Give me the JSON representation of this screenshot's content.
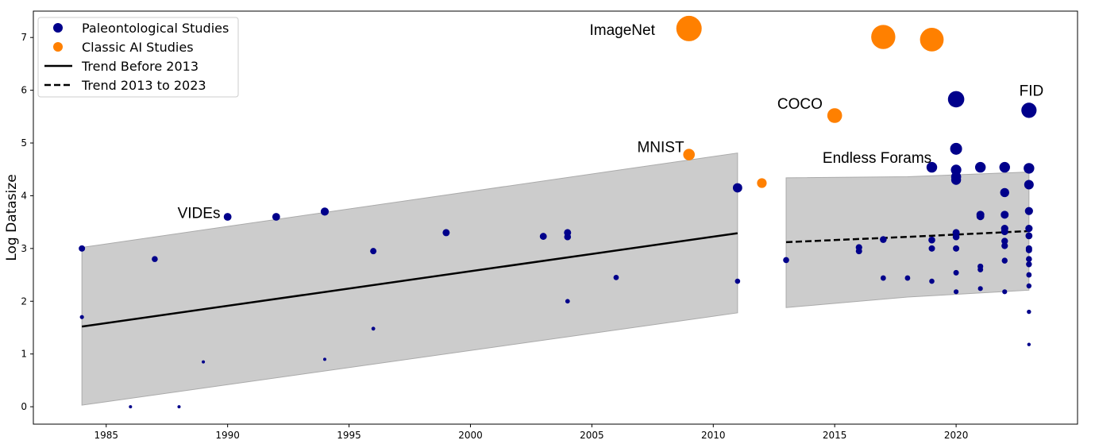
{
  "chart_data": {
    "type": "scatter",
    "title": "",
    "xlabel": "",
    "ylabel": "Log Datasize",
    "xlim": [
      1982.0,
      2025.0
    ],
    "ylim": [
      -0.33,
      7.5
    ],
    "xticks": [
      1985,
      1990,
      1995,
      2000,
      2005,
      2010,
      2015,
      2020
    ],
    "yticks": [
      0,
      1,
      2,
      3,
      4,
      5,
      6,
      7
    ],
    "grid": false,
    "legend_position": "top-left",
    "legend": [
      "Paleontological Studies",
      "Classic AI Studies",
      "Trend Before 2013",
      "Trend 2013 to 2023"
    ],
    "colors": {
      "paleo": "#00008b",
      "ai": "#ff8000",
      "band": "#cccccc"
    },
    "series": [
      {
        "name": "Paleontological Studies",
        "points": [
          [
            1984,
            3.0
          ],
          [
            1984,
            1.7
          ],
          [
            1986,
            0.0
          ],
          [
            1987,
            2.8
          ],
          [
            1988,
            0.0
          ],
          [
            1989,
            0.85
          ],
          [
            1990,
            3.6
          ],
          [
            1992,
            3.6
          ],
          [
            1994,
            3.7
          ],
          [
            1994,
            0.9
          ],
          [
            1996,
            2.95
          ],
          [
            1996,
            1.48
          ],
          [
            1999,
            3.3
          ],
          [
            2003,
            3.23
          ],
          [
            2004,
            3.3
          ],
          [
            2004,
            3.22
          ],
          [
            2004,
            2.0
          ],
          [
            2006,
            2.45
          ],
          [
            2011,
            4.15
          ],
          [
            2011,
            2.38
          ],
          [
            2013,
            2.78
          ],
          [
            2016,
            3.02
          ],
          [
            2016,
            2.95
          ],
          [
            2017,
            3.17
          ],
          [
            2017,
            2.44
          ],
          [
            2018,
            2.44
          ],
          [
            2019,
            4.54
          ],
          [
            2019,
            3.16
          ],
          [
            2019,
            3.0
          ],
          [
            2019,
            2.38
          ],
          [
            2020,
            5.83
          ],
          [
            2020,
            4.89
          ],
          [
            2020,
            4.49
          ],
          [
            2020,
            4.36
          ],
          [
            2020,
            4.3
          ],
          [
            2020,
            3.3
          ],
          [
            2020,
            3.22
          ],
          [
            2020,
            3.0
          ],
          [
            2020,
            2.54
          ],
          [
            2020,
            2.18
          ],
          [
            2021,
            4.54
          ],
          [
            2021,
            3.64
          ],
          [
            2021,
            3.61
          ],
          [
            2021,
            2.66
          ],
          [
            2021,
            2.6
          ],
          [
            2021,
            2.24
          ],
          [
            2022,
            4.54
          ],
          [
            2022,
            4.06
          ],
          [
            2022,
            3.64
          ],
          [
            2022,
            3.38
          ],
          [
            2022,
            3.32
          ],
          [
            2022,
            3.14
          ],
          [
            2022,
            3.05
          ],
          [
            2022,
            2.77
          ],
          [
            2022,
            2.18
          ],
          [
            2023,
            5.62
          ],
          [
            2023,
            4.52
          ],
          [
            2023,
            4.21
          ],
          [
            2023,
            3.71
          ],
          [
            2023,
            3.38
          ],
          [
            2023,
            3.24
          ],
          [
            2023,
            3.0
          ],
          [
            2023,
            2.97
          ],
          [
            2023,
            2.8
          ],
          [
            2023,
            2.7
          ],
          [
            2023,
            2.5
          ],
          [
            2023,
            2.29
          ],
          [
            2023,
            1.8
          ],
          [
            2023,
            1.18
          ]
        ]
      },
      {
        "name": "Classic AI Studies",
        "points": [
          [
            2009,
            7.17
          ],
          [
            2017,
            7.01
          ],
          [
            2019,
            6.96
          ],
          [
            2015,
            5.52
          ],
          [
            2009,
            4.78
          ],
          [
            2012,
            4.24
          ]
        ]
      }
    ],
    "trends": [
      {
        "name": "Trend Before 2013",
        "style": "solid",
        "x": [
          1984,
          2011
        ],
        "y": [
          1.52,
          3.29
        ],
        "band_upper": [
          3.02,
          4.81
        ],
        "band_lower": [
          0.03,
          1.78
        ]
      },
      {
        "name": "Trend 2013 to 2023",
        "style": "dashed",
        "x": [
          2013,
          2018,
          2023
        ],
        "y": [
          3.12,
          3.22,
          3.33
        ],
        "band_upper": [
          4.34,
          4.36,
          4.45
        ],
        "band_lower": [
          1.88,
          2.08,
          2.21
        ]
      }
    ],
    "annotations": [
      {
        "text": "ImageNet",
        "x": 2007.6,
        "y": 7.15,
        "anchor": "end"
      },
      {
        "text": "COCO",
        "x": 2014.5,
        "y": 5.75,
        "anchor": "end"
      },
      {
        "text": "MNIST",
        "x": 2008.8,
        "y": 4.93,
        "anchor": "end"
      },
      {
        "text": "VIDEs",
        "x": 1989.7,
        "y": 3.68,
        "anchor": "end"
      },
      {
        "text": "Endless Forams",
        "x": 2014.5,
        "y": 4.73,
        "anchor": "start"
      },
      {
        "text": "FID",
        "x": 2022.6,
        "y": 6.0,
        "anchor": "start"
      }
    ]
  }
}
